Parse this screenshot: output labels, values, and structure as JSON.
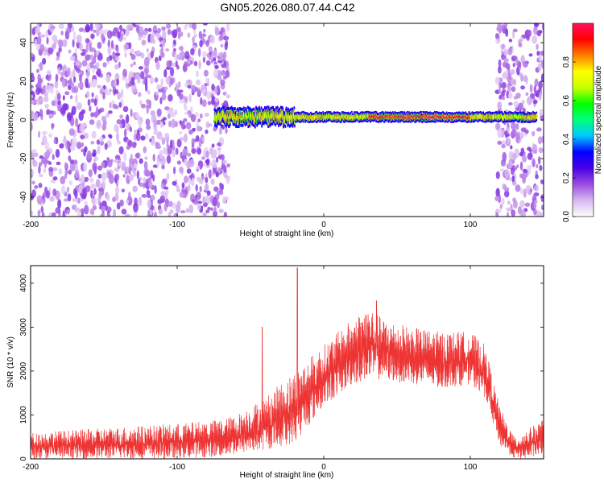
{
  "figure": {
    "title": "GN05.2026.080.07.44.C42"
  },
  "chart_data": [
    {
      "type": "heatmap",
      "xlabel": "Height of straight line (km)",
      "ylabel": "Frequency (Hz)",
      "xlim": [
        -200,
        150
      ],
      "ylim": [
        -50,
        50
      ],
      "xticks": [
        -200,
        -100,
        0,
        100
      ],
      "yticks": [
        -40,
        -20,
        0,
        20,
        40
      ],
      "grid": false,
      "colorbar": {
        "label": "Normalized spectral amplitude",
        "range": [
          0.0,
          1.0
        ],
        "ticks": [
          0.0,
          0.2,
          0.4,
          0.6,
          0.8
        ],
        "tick_labels": [
          "0.0",
          "0.2",
          "0.4",
          "0.6",
          "0.8"
        ],
        "colormap": [
          "#ffffff",
          "#d8b8f0",
          "#9b4de0",
          "#4a00e8",
          "#0000ff",
          "#00c8ff",
          "#00ff80",
          "#00ff00",
          "#c8ff00",
          "#ffff00",
          "#ff8000",
          "#ff0000",
          "#ff1060"
        ]
      },
      "regions": [
        {
          "name": "scattered noise",
          "x_range": [
            -200,
            -65
          ],
          "freq_range": [
            -50,
            50
          ],
          "amplitude": [
            0.05,
            0.2
          ]
        },
        {
          "name": "scattered noise",
          "x_range": [
            118,
            150
          ],
          "freq_range": [
            -50,
            50
          ],
          "amplitude": [
            0.05,
            0.2
          ]
        },
        {
          "name": "narrow band",
          "x_range": [
            -75,
            145
          ],
          "freq_center": 1.5,
          "freq_halfwidth": 3,
          "amplitude": [
            0.3,
            1.0
          ]
        }
      ]
    },
    {
      "type": "line",
      "xlabel": "Height of straight line (km)",
      "ylabel": "SNR (10 * v/v)",
      "xlim": [
        -200,
        150
      ],
      "ylim": [
        0,
        4400
      ],
      "xticks": [
        -200,
        -100,
        0,
        100
      ],
      "yticks": [
        0,
        1000,
        2000,
        3000,
        4000
      ],
      "grid": false,
      "series_color": "#ee3333",
      "envelope": {
        "x": [
          -200,
          -150,
          -100,
          -70,
          -60,
          -40,
          -20,
          0,
          20,
          30,
          40,
          60,
          80,
          100,
          110,
          120,
          130,
          140,
          150
        ],
        "upper": [
          600,
          700,
          800,
          900,
          1000,
          1400,
          2000,
          2600,
          3200,
          3500,
          3200,
          3000,
          2900,
          2900,
          2600,
          1200,
          500,
          700,
          900
        ],
        "lower": [
          0,
          0,
          0,
          50,
          100,
          200,
          350,
          1200,
          1700,
          1800,
          1800,
          1700,
          1600,
          1700,
          1400,
          300,
          0,
          0,
          100
        ]
      },
      "peaks": [
        {
          "x": -18,
          "y": 4350
        },
        {
          "x": -42,
          "y": 3000
        },
        {
          "x": 36,
          "y": 3600
        }
      ]
    }
  ]
}
